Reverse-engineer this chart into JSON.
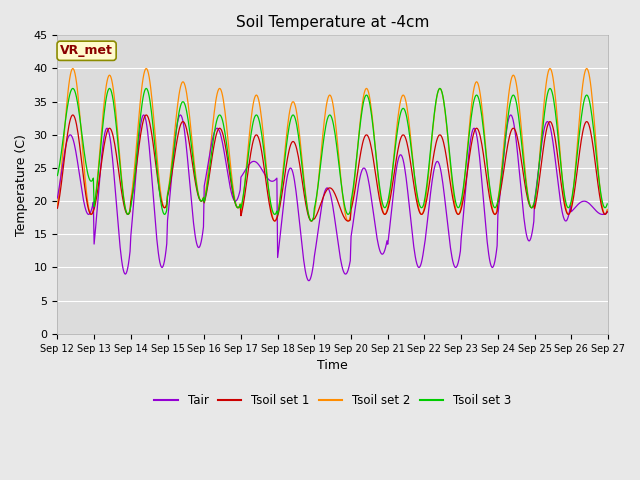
{
  "title": "Soil Temperature at -4cm",
  "xlabel": "Time",
  "ylabel": "Temperature (C)",
  "ylim": [
    0,
    45
  ],
  "yticks": [
    0,
    5,
    10,
    15,
    20,
    25,
    30,
    35,
    40,
    45
  ],
  "xtick_labels": [
    "Sep 12",
    "Sep 13",
    "Sep 14",
    "Sep 15",
    "Sep 16",
    "Sep 17",
    "Sep 18",
    "Sep 19",
    "Sep 20",
    "Sep 21",
    "Sep 22",
    "Sep 23",
    "Sep 24",
    "Sep 25",
    "Sep 26",
    "Sep 27"
  ],
  "color_tair": "#9400D3",
  "color_tsoil1": "#CC0000",
  "color_tsoil2": "#FF8C00",
  "color_tsoil3": "#00CC00",
  "fig_bg": "#E8E8E8",
  "plot_bg": "#DCDCDC",
  "annotation_text": "VR_met",
  "annotation_color": "#8B0000",
  "annotation_bg": "#FFFACD",
  "annotation_border": "#8B8B00",
  "legend_labels": [
    "Tair",
    "Tsoil set 1",
    "Tsoil set 2",
    "Tsoil set 3"
  ],
  "n_days": 15,
  "pts_per_day": 48,
  "tair_min_vals": [
    18,
    9,
    10,
    13,
    20,
    23,
    8,
    9,
    12,
    10,
    10,
    10,
    14,
    17,
    18
  ],
  "tair_max_vals": [
    30,
    31,
    33,
    33,
    31,
    26,
    25,
    22,
    25,
    27,
    26,
    31,
    33,
    32,
    20
  ],
  "ts2_min_vals": [
    18,
    18,
    19,
    20,
    19,
    17,
    17,
    17,
    18,
    18,
    18,
    18,
    19,
    18,
    18
  ],
  "ts2_max_vals": [
    40,
    39,
    40,
    38,
    37,
    36,
    35,
    36,
    37,
    36,
    37,
    38,
    39,
    40,
    40
  ],
  "ts1_min_vals": [
    18,
    18,
    19,
    20,
    19,
    17,
    17,
    17,
    18,
    18,
    18,
    18,
    19,
    18,
    18
  ],
  "ts1_max_vals": [
    33,
    31,
    33,
    32,
    31,
    30,
    29,
    22,
    30,
    30,
    30,
    31,
    31,
    32,
    32
  ],
  "ts3_min_vals": [
    23,
    18,
    18,
    20,
    19,
    18,
    17,
    18,
    19,
    19,
    19,
    19,
    19,
    19,
    19
  ],
  "ts3_max_vals": [
    37,
    37,
    37,
    35,
    33,
    33,
    33,
    33,
    36,
    34,
    37,
    36,
    36,
    37,
    36
  ],
  "tair_phase": 0.35,
  "soil_phase": 0.42
}
